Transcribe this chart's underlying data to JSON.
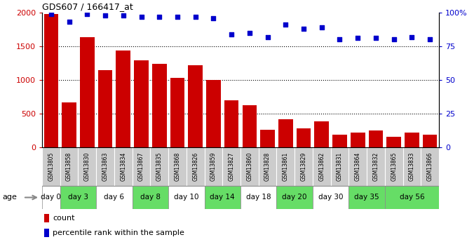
{
  "title": "GDS607 / 166417_at",
  "samples": [
    "GSM13805",
    "GSM13858",
    "GSM13830",
    "GSM13863",
    "GSM13834",
    "GSM13867",
    "GSM13835",
    "GSM13868",
    "GSM13826",
    "GSM13859",
    "GSM13827",
    "GSM13860",
    "GSM13828",
    "GSM13861",
    "GSM13829",
    "GSM13862",
    "GSM13831",
    "GSM13864",
    "GSM13832",
    "GSM13865",
    "GSM13833",
    "GSM13866"
  ],
  "counts": [
    1980,
    670,
    1640,
    1150,
    1440,
    1290,
    1240,
    1030,
    1220,
    1000,
    700,
    620,
    260,
    420,
    280,
    390,
    185,
    215,
    245,
    155,
    215,
    185
  ],
  "percentiles": [
    99,
    93,
    99,
    98,
    98,
    97,
    97,
    97,
    97,
    96,
    84,
    85,
    82,
    91,
    88,
    89,
    80,
    81,
    81,
    80,
    82,
    80
  ],
  "age_groups": [
    {
      "label": "day 0",
      "start": 0,
      "end": 1,
      "color": "#ffffff"
    },
    {
      "label": "day 3",
      "start": 1,
      "end": 3,
      "color": "#66dd66"
    },
    {
      "label": "day 6",
      "start": 3,
      "end": 5,
      "color": "#ffffff"
    },
    {
      "label": "day 8",
      "start": 5,
      "end": 7,
      "color": "#66dd66"
    },
    {
      "label": "day 10",
      "start": 7,
      "end": 9,
      "color": "#ffffff"
    },
    {
      "label": "day 14",
      "start": 9,
      "end": 11,
      "color": "#66dd66"
    },
    {
      "label": "day 18",
      "start": 11,
      "end": 13,
      "color": "#ffffff"
    },
    {
      "label": "day 20",
      "start": 13,
      "end": 15,
      "color": "#66dd66"
    },
    {
      "label": "day 30",
      "start": 15,
      "end": 17,
      "color": "#ffffff"
    },
    {
      "label": "day 35",
      "start": 17,
      "end": 19,
      "color": "#66dd66"
    },
    {
      "label": "day 56",
      "start": 19,
      "end": 22,
      "color": "#66dd66"
    }
  ],
  "bar_color": "#cc0000",
  "dot_color": "#0000cc",
  "ylim_left": [
    0,
    2000
  ],
  "ylim_right": [
    0,
    100
  ],
  "yticks_left": [
    0,
    500,
    1000,
    1500,
    2000
  ],
  "yticks_right": [
    0,
    25,
    50,
    75,
    100
  ],
  "bg_color": "#ffffff",
  "sample_box_color": "#cccccc",
  "grid_yticks": [
    500,
    1000,
    1500
  ]
}
